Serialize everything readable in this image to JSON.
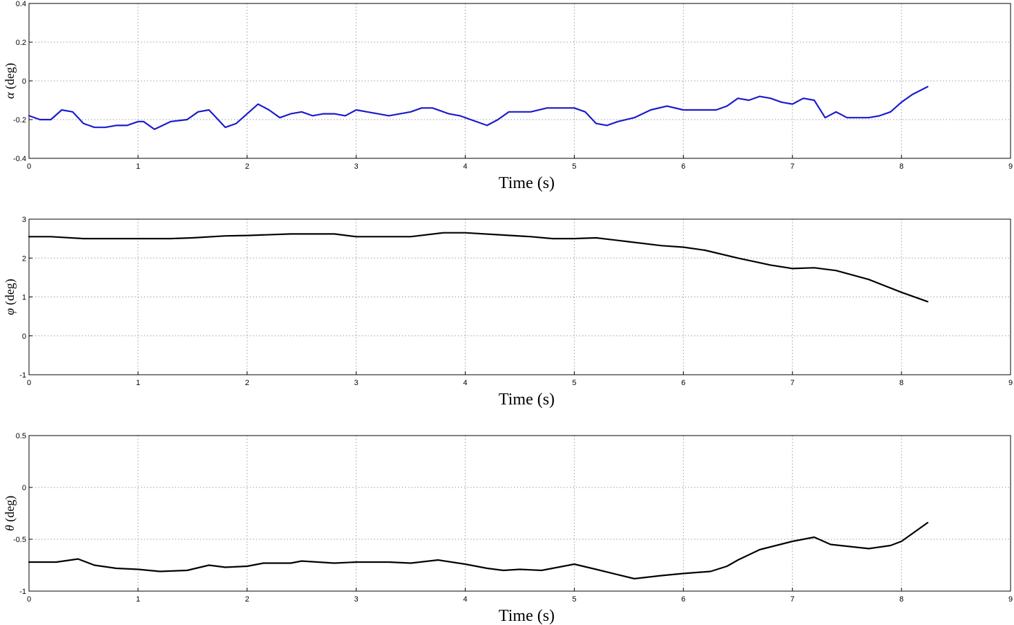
{
  "chart_data": [
    {
      "type": "line",
      "xlabel": "Time (s)",
      "ylabel_symbol": "α",
      "ylabel_unit": " (deg)",
      "xlim": [
        0,
        9
      ],
      "ylim": [
        -0.4,
        0.4
      ],
      "xticks": [
        0,
        1,
        2,
        3,
        4,
        5,
        6,
        7,
        8,
        9
      ],
      "yticks": [
        -0.4,
        -0.2,
        0,
        0.2,
        0.4
      ],
      "ytick_labels": [
        "-0.4",
        "-0.2",
        "0",
        "0.2",
        "0.4"
      ],
      "grid": true,
      "color": "#1a1acc",
      "series": [
        {
          "x": [
            0,
            0.1,
            0.2,
            0.3,
            0.4,
            0.5,
            0.6,
            0.7,
            0.8,
            0.9,
            1.0,
            1.05,
            1.15,
            1.3,
            1.45,
            1.55,
            1.65,
            1.75,
            1.8,
            1.9,
            2.0,
            2.1,
            2.2,
            2.3,
            2.4,
            2.5,
            2.6,
            2.7,
            2.8,
            2.9,
            3.0,
            3.1,
            3.2,
            3.3,
            3.5,
            3.6,
            3.7,
            3.85,
            3.95,
            4.05,
            4.2,
            4.3,
            4.4,
            4.5,
            4.6,
            4.75,
            4.85,
            5.0,
            5.1,
            5.2,
            5.3,
            5.4,
            5.55,
            5.7,
            5.85,
            6.0,
            6.1,
            6.2,
            6.3,
            6.4,
            6.5,
            6.6,
            6.7,
            6.8,
            6.9,
            7.0,
            7.1,
            7.2,
            7.3,
            7.4,
            7.5,
            7.6,
            7.7,
            7.8,
            7.9,
            8.0,
            8.1,
            8.24
          ],
          "y": [
            -0.18,
            -0.2,
            -0.2,
            -0.15,
            -0.16,
            -0.22,
            -0.24,
            -0.24,
            -0.23,
            -0.23,
            -0.21,
            -0.21,
            -0.25,
            -0.21,
            -0.2,
            -0.16,
            -0.15,
            -0.21,
            -0.24,
            -0.22,
            -0.17,
            -0.12,
            -0.15,
            -0.19,
            -0.17,
            -0.16,
            -0.18,
            -0.17,
            -0.17,
            -0.18,
            -0.15,
            -0.16,
            -0.17,
            -0.18,
            -0.16,
            -0.14,
            -0.14,
            -0.17,
            -0.18,
            -0.2,
            -0.23,
            -0.2,
            -0.16,
            -0.16,
            -0.16,
            -0.14,
            -0.14,
            -0.14,
            -0.16,
            -0.22,
            -0.23,
            -0.21,
            -0.19,
            -0.15,
            -0.13,
            -0.15,
            -0.15,
            -0.15,
            -0.15,
            -0.13,
            -0.09,
            -0.1,
            -0.08,
            -0.09,
            -0.11,
            -0.12,
            -0.09,
            -0.1,
            -0.19,
            -0.16,
            -0.19,
            -0.19,
            -0.19,
            -0.18,
            -0.16,
            -0.11,
            -0.07,
            -0.03
          ]
        }
      ]
    },
    {
      "type": "line",
      "xlabel": "Time (s)",
      "ylabel_symbol": "φ",
      "ylabel_unit": " (deg)",
      "xlim": [
        0,
        9
      ],
      "ylim": [
        -1,
        3
      ],
      "xticks": [
        0,
        1,
        2,
        3,
        4,
        5,
        6,
        7,
        8,
        9
      ],
      "yticks": [
        -1,
        0,
        1,
        2,
        3
      ],
      "ytick_labels": [
        "-1",
        "0",
        "1",
        "2",
        "3"
      ],
      "grid": true,
      "color": "#000000",
      "series": [
        {
          "x": [
            0,
            0.2,
            0.5,
            0.8,
            1.0,
            1.3,
            1.5,
            1.8,
            2.0,
            2.4,
            2.8,
            3.0,
            3.3,
            3.5,
            3.8,
            4.0,
            4.3,
            4.6,
            4.8,
            5.0,
            5.2,
            5.5,
            5.8,
            6.0,
            6.2,
            6.5,
            6.8,
            7.0,
            7.2,
            7.4,
            7.7,
            8.0,
            8.24
          ],
          "y": [
            2.55,
            2.55,
            2.5,
            2.5,
            2.5,
            2.5,
            2.52,
            2.57,
            2.58,
            2.62,
            2.62,
            2.55,
            2.55,
            2.55,
            2.65,
            2.65,
            2.6,
            2.55,
            2.5,
            2.5,
            2.52,
            2.42,
            2.32,
            2.28,
            2.2,
            2.0,
            1.82,
            1.73,
            1.75,
            1.68,
            1.45,
            1.12,
            0.88
          ]
        }
      ]
    },
    {
      "type": "line",
      "xlabel": "Time (s)",
      "ylabel_symbol": "θ",
      "ylabel_unit": " (deg)",
      "xlim": [
        0,
        9
      ],
      "ylim": [
        -1,
        0.5
      ],
      "xticks": [
        0,
        1,
        2,
        3,
        4,
        5,
        6,
        7,
        8,
        9
      ],
      "yticks": [
        -1,
        -0.5,
        0,
        0.5
      ],
      "ytick_labels": [
        "-1",
        "-0.5",
        "0",
        "0.5"
      ],
      "grid": true,
      "color": "#000000",
      "series": [
        {
          "x": [
            0,
            0.25,
            0.45,
            0.6,
            0.8,
            1.0,
            1.2,
            1.45,
            1.65,
            1.8,
            2.0,
            2.15,
            2.4,
            2.5,
            2.8,
            3.0,
            3.3,
            3.5,
            3.75,
            4.0,
            4.2,
            4.35,
            4.5,
            4.7,
            4.85,
            5.0,
            5.2,
            5.55,
            5.8,
            6.0,
            6.25,
            6.4,
            6.5,
            6.7,
            7.0,
            7.2,
            7.35,
            7.7,
            7.9,
            8.0,
            8.24
          ],
          "y": [
            -0.72,
            -0.72,
            -0.69,
            -0.75,
            -0.78,
            -0.79,
            -0.81,
            -0.8,
            -0.75,
            -0.77,
            -0.76,
            -0.73,
            -0.73,
            -0.71,
            -0.73,
            -0.72,
            -0.72,
            -0.73,
            -0.7,
            -0.74,
            -0.78,
            -0.8,
            -0.79,
            -0.8,
            -0.77,
            -0.74,
            -0.79,
            -0.88,
            -0.85,
            -0.83,
            -0.81,
            -0.76,
            -0.7,
            -0.6,
            -0.52,
            -0.48,
            -0.55,
            -0.59,
            -0.56,
            -0.52,
            -0.34
          ]
        }
      ]
    }
  ]
}
